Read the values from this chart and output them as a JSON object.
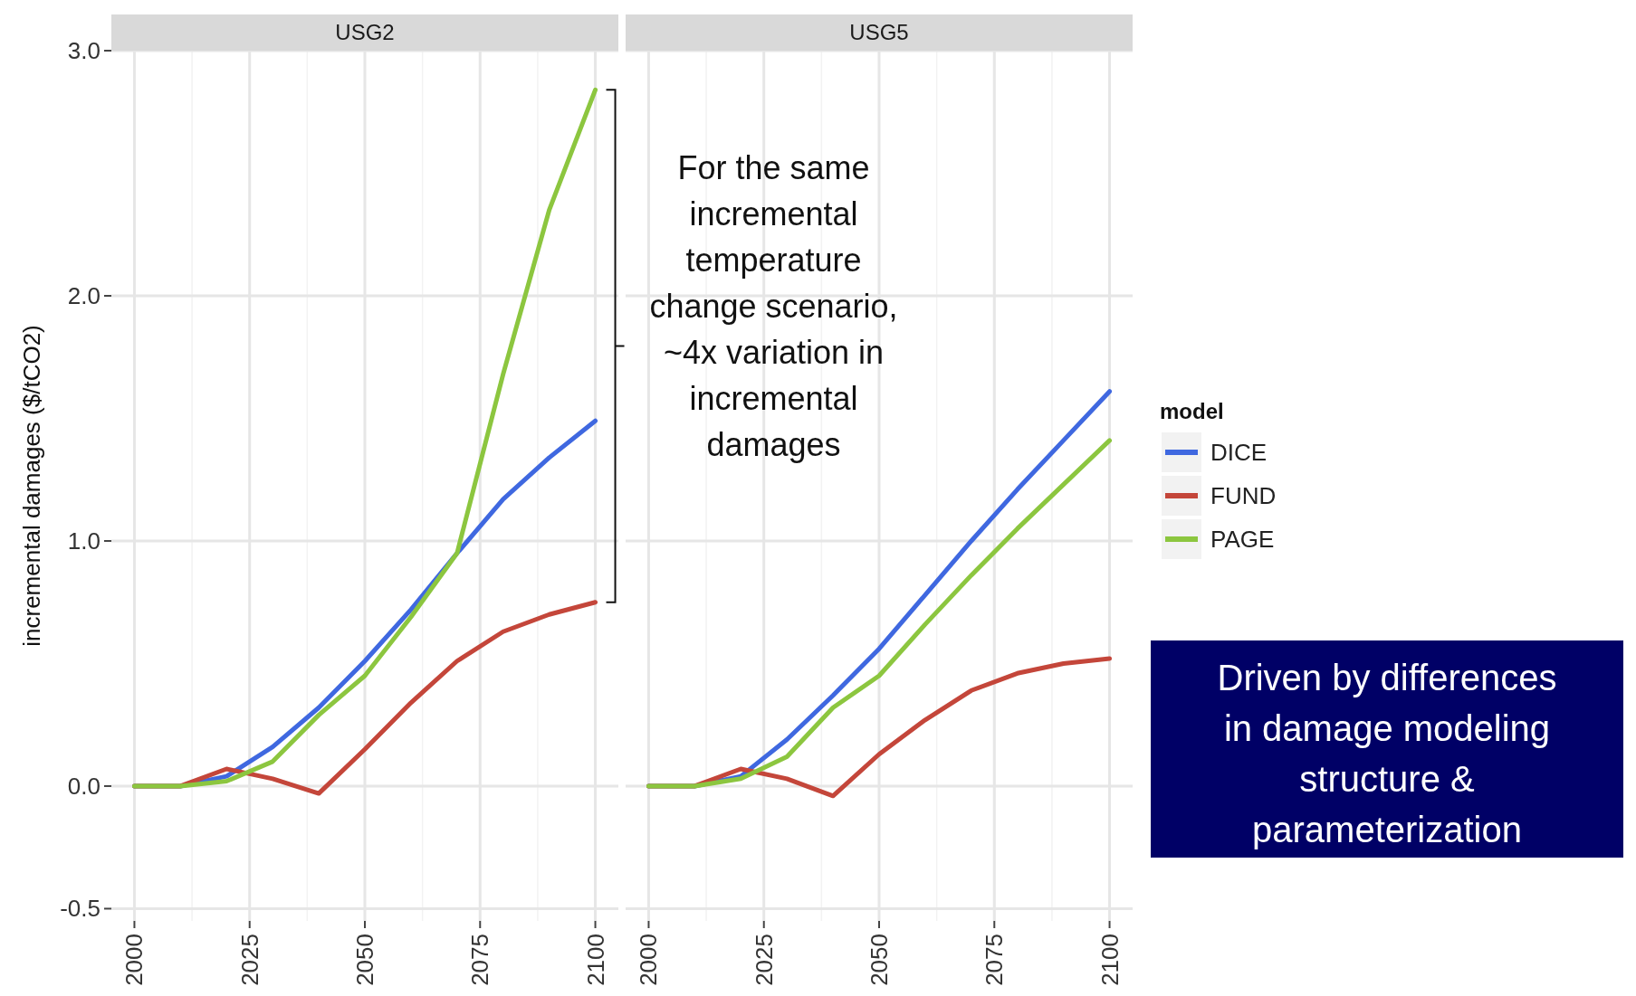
{
  "chart_data": [
    {
      "type": "line",
      "title": "USG2",
      "ylabel": "incremental damages ($/tCO2)",
      "x": [
        2000,
        2010,
        2020,
        2030,
        2040,
        2050,
        2060,
        2070,
        2080,
        2090,
        2100
      ],
      "series": [
        {
          "color": "#3f68e0",
          "values": [
            0,
            0,
            0.04,
            0.16,
            0.32,
            0.51,
            0.72,
            0.95,
            1.17,
            1.34,
            1.49
          ]
        },
        {
          "color": "#c4463a",
          "values": [
            0,
            0,
            0.07,
            0.03,
            -0.03,
            0.15,
            0.34,
            0.51,
            0.63,
            0.7,
            0.75
          ]
        },
        {
          "color": "#8cc63f",
          "values": [
            0,
            0,
            0.02,
            0.1,
            0.29,
            0.45,
            0.69,
            0.95,
            1.68,
            2.35,
            2.84
          ]
        }
      ],
      "xlim": [
        1995,
        2105
      ],
      "ylim": [
        -0.55,
        3.0
      ],
      "xticks": [
        2000,
        2025,
        2050,
        2075,
        2100
      ],
      "yticks": [
        {
          "value": -0.5,
          "label": "-0.5"
        },
        {
          "value": 0,
          "label": "0.0"
        },
        {
          "value": 1,
          "label": "1.0"
        },
        {
          "value": 2,
          "label": "2.0"
        },
        {
          "value": 3,
          "label": "3.0"
        }
      ],
      "grid": true,
      "annotations": [
        "For the same incremental temperature change scenario, ~4x variation in incremental damages"
      ]
    },
    {
      "type": "line",
      "title": "USG5",
      "x": [
        2000,
        2010,
        2020,
        2030,
        2040,
        2050,
        2060,
        2070,
        2080,
        2090,
        2100
      ],
      "series": [
        {
          "name": "DICE",
          "color": "#3f68e0",
          "values": [
            0,
            0,
            0.04,
            0.19,
            0.37,
            0.56,
            0.78,
            1.0,
            1.21,
            1.41,
            1.61
          ]
        },
        {
          "name": "FUND",
          "color": "#c4463a",
          "values": [
            0,
            0,
            0.07,
            0.03,
            -0.04,
            0.13,
            0.27,
            0.39,
            0.46,
            0.5,
            0.52
          ]
        },
        {
          "name": "PAGE",
          "color": "#8cc63f",
          "values": [
            0,
            0,
            0.03,
            0.12,
            0.32,
            0.45,
            0.66,
            0.86,
            1.05,
            1.23,
            1.41
          ]
        }
      ],
      "xlim": [
        1995,
        2105
      ],
      "ylim": [
        -0.55,
        3.0
      ],
      "xticks": [
        2000,
        2025,
        2050,
        2075,
        2100
      ],
      "yticks": [
        -0.5,
        0,
        1,
        2,
        3
      ],
      "tick_labels": "x",
      "grid": true,
      "legend": "right",
      "legend_title": "model",
      "annotations": [
        "Driven by differences in damage modeling structure & parameterization"
      ]
    }
  ]
}
